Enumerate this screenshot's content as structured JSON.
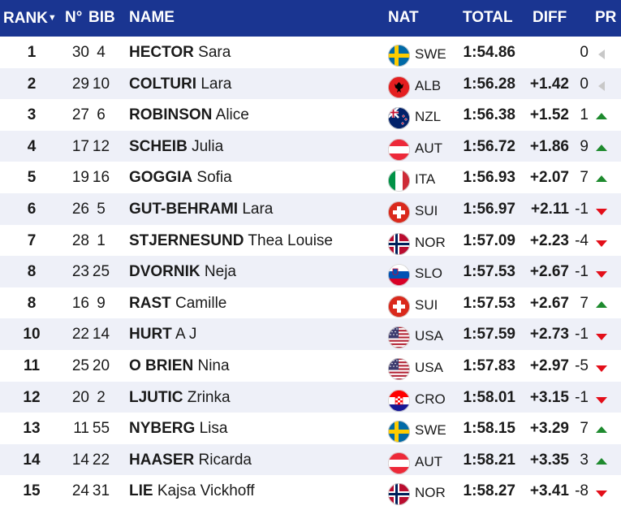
{
  "header": {
    "rank": "RANK",
    "rank_sort_icon": "sort-down-icon",
    "no": "N°",
    "bib": "BIB",
    "name": "NAME",
    "nat": "NAT",
    "total": "TOTAL",
    "diff": "DIFF",
    "pr": "PR"
  },
  "colors": {
    "header_bg": "#1a3591",
    "row_alt": "#eef0f8",
    "up": "#1e8a2e",
    "down": "#e30e19",
    "neutral": "#c8c8c8"
  },
  "rows": [
    {
      "rank": "1",
      "no": "30",
      "bib": "4",
      "last": "HECTOR",
      "first": "Sara",
      "nat": "SWE",
      "total": "1:54.86",
      "diff": "",
      "pr": "0",
      "trend": "neutral"
    },
    {
      "rank": "2",
      "no": "29",
      "bib": "10",
      "last": "COLTURI",
      "first": "Lara",
      "nat": "ALB",
      "total": "1:56.28",
      "diff": "+1.42",
      "pr": "0",
      "trend": "neutral"
    },
    {
      "rank": "3",
      "no": "27",
      "bib": "6",
      "last": "ROBINSON",
      "first": "Alice",
      "nat": "NZL",
      "total": "1:56.38",
      "diff": "+1.52",
      "pr": "1",
      "trend": "up"
    },
    {
      "rank": "4",
      "no": "17",
      "bib": "12",
      "last": "SCHEIB",
      "first": "Julia",
      "nat": "AUT",
      "total": "1:56.72",
      "diff": "+1.86",
      "pr": "9",
      "trend": "up"
    },
    {
      "rank": "5",
      "no": "19",
      "bib": "16",
      "last": "GOGGIA",
      "first": "Sofia",
      "nat": "ITA",
      "total": "1:56.93",
      "diff": "+2.07",
      "pr": "7",
      "trend": "up"
    },
    {
      "rank": "6",
      "no": "26",
      "bib": "5",
      "last": "GUT-BEHRAMI",
      "first": "Lara",
      "nat": "SUI",
      "total": "1:56.97",
      "diff": "+2.11",
      "pr": "-1",
      "trend": "down"
    },
    {
      "rank": "7",
      "no": "28",
      "bib": "1",
      "last": "STJERNESUND",
      "first": "Thea Louise",
      "nat": "NOR",
      "total": "1:57.09",
      "diff": "+2.23",
      "pr": "-4",
      "trend": "down"
    },
    {
      "rank": "8",
      "no": "23",
      "bib": "25",
      "last": "DVORNIK",
      "first": "Neja",
      "nat": "SLO",
      "total": "1:57.53",
      "diff": "+2.67",
      "pr": "-1",
      "trend": "down"
    },
    {
      "rank": "8",
      "no": "16",
      "bib": "9",
      "last": "RAST",
      "first": "Camille",
      "nat": "SUI",
      "total": "1:57.53",
      "diff": "+2.67",
      "pr": "7",
      "trend": "up"
    },
    {
      "rank": "10",
      "no": "22",
      "bib": "14",
      "last": "HURT",
      "first": "A J",
      "nat": "USA",
      "total": "1:57.59",
      "diff": "+2.73",
      "pr": "-1",
      "trend": "down"
    },
    {
      "rank": "11",
      "no": "25",
      "bib": "20",
      "last": "O BRIEN",
      "first": "Nina",
      "nat": "USA",
      "total": "1:57.83",
      "diff": "+2.97",
      "pr": "-5",
      "trend": "down"
    },
    {
      "rank": "12",
      "no": "20",
      "bib": "2",
      "last": "LJUTIC",
      "first": "Zrinka",
      "nat": "CRO",
      "total": "1:58.01",
      "diff": "+3.15",
      "pr": "-1",
      "trend": "down"
    },
    {
      "rank": "13",
      "no": "11",
      "bib": "55",
      "last": "NYBERG",
      "first": "Lisa",
      "nat": "SWE",
      "total": "1:58.15",
      "diff": "+3.29",
      "pr": "7",
      "trend": "up"
    },
    {
      "rank": "14",
      "no": "14",
      "bib": "22",
      "last": "HAASER",
      "first": "Ricarda",
      "nat": "AUT",
      "total": "1:58.21",
      "diff": "+3.35",
      "pr": "3",
      "trend": "up"
    },
    {
      "rank": "15",
      "no": "24",
      "bib": "31",
      "last": "LIE",
      "first": "Kajsa Vickhoff",
      "nat": "NOR",
      "total": "1:58.27",
      "diff": "+3.41",
      "pr": "-8",
      "trend": "down"
    }
  ]
}
